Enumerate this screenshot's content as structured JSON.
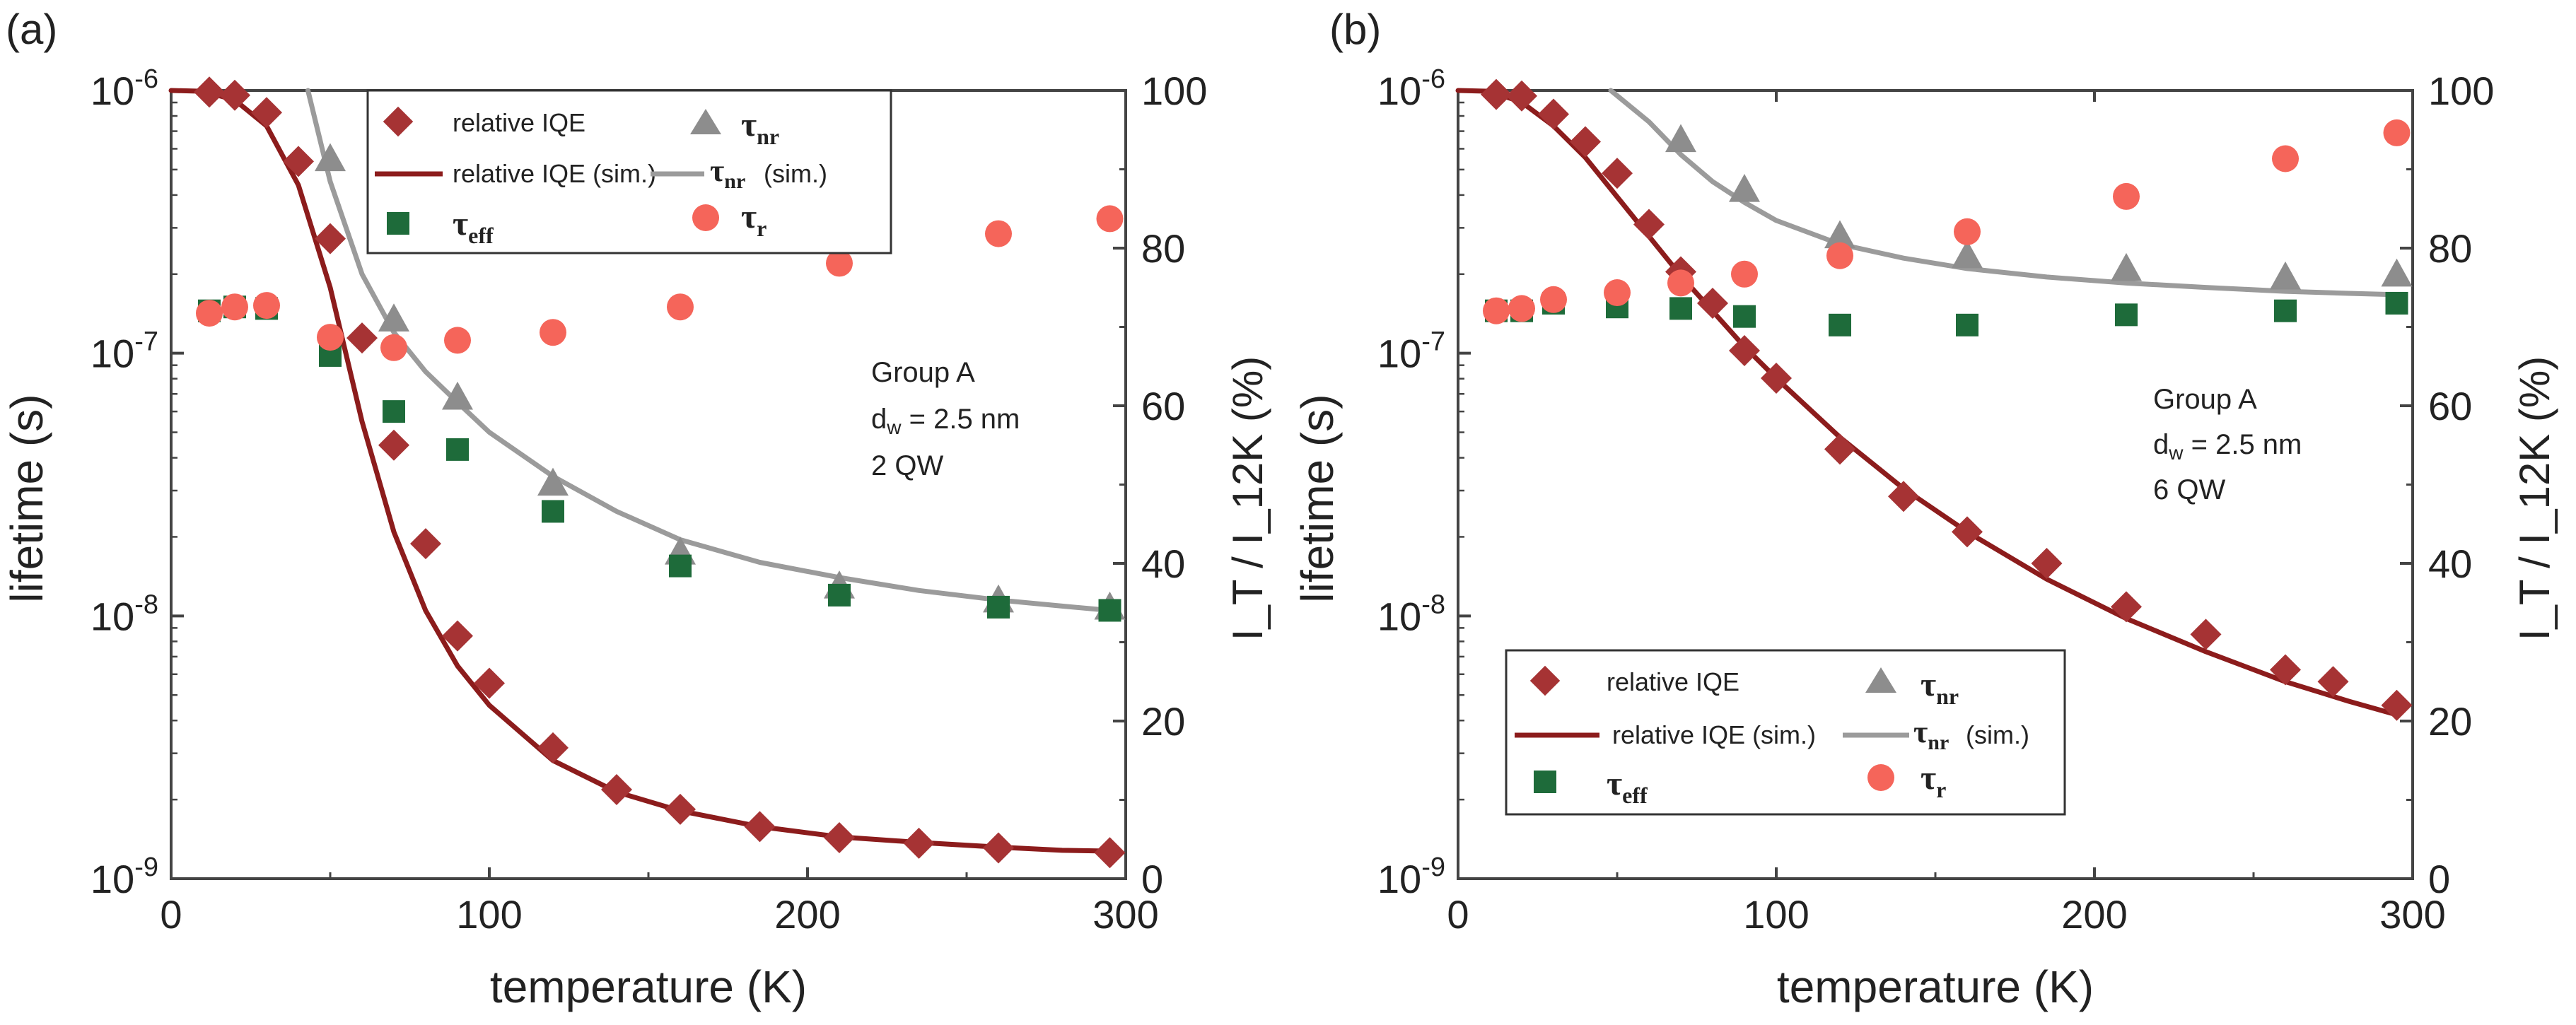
{
  "chart_data": [
    {
      "type": "scatter",
      "panel_label": "(a)",
      "xlabel": "temperature (K)",
      "ylabel_left": "lifetime (s)",
      "ylabel_right": "I_T / I_12K (%)",
      "xlim": [
        0,
        300
      ],
      "ylim_left_log10": [
        -9,
        -6
      ],
      "ylim_right": [
        0,
        100
      ],
      "x_ticks": [
        "0",
        "100",
        "200",
        "300"
      ],
      "y_left_ticks": [
        "-9",
        "-8",
        "-7",
        "-6"
      ],
      "y_right_ticks": [
        "0",
        "20",
        "40",
        "60",
        "80",
        "100"
      ],
      "annotation": {
        "group": "Group A",
        "dw_value": "= 2.5 nm",
        "qw": "2 QW"
      },
      "legend": {
        "placement": "top-center",
        "relative_iqe": "relative IQE",
        "relative_iqe_sim": "relative IQE (sim.)",
        "tau_nr": "nr",
        "tau_nr_sim": "(sim.)",
        "tau_eff": "eff",
        "tau_r": "r"
      },
      "series": [
        {
          "name": "relative IQE",
          "axis": "right",
          "marker": "diamond",
          "color": "#a63334",
          "x": [
            12,
            20,
            30,
            40,
            50,
            60,
            70,
            80,
            90,
            100,
            120,
            140,
            160,
            185,
            210,
            235,
            260,
            295
          ],
          "y": [
            99.8,
            99.4,
            97.2,
            91.0,
            81.2,
            68.6,
            55.0,
            42.5,
            30.8,
            24.8,
            16.6,
            11.3,
            8.8,
            6.6,
            5.2,
            4.5,
            3.9,
            3.3
          ]
        },
        {
          "name": "relative IQE (sim.)",
          "axis": "right",
          "line": true,
          "color": "#8c1c1c",
          "x": [
            0,
            10,
            20,
            30,
            40,
            50,
            60,
            70,
            80,
            90,
            100,
            120,
            140,
            160,
            185,
            210,
            235,
            260,
            280,
            295
          ],
          "y": [
            100,
            99.9,
            98.8,
            95.5,
            88.0,
            75.0,
            58.0,
            44.0,
            34.0,
            27.0,
            22.0,
            15.0,
            11.0,
            8.6,
            6.6,
            5.3,
            4.6,
            4.0,
            3.6,
            3.5
          ]
        },
        {
          "name": "tau_nr",
          "axis": "left",
          "marker": "triangle",
          "color": "#8d8d8d",
          "x": [
            50,
            70,
            90,
            120,
            160,
            210,
            260,
            295
          ],
          "y": [
            5.5e-07,
            1.35e-07,
            6.8e-08,
            3.2e-08,
            1.75e-08,
            1.3e-08,
            1.15e-08,
            1.08e-08
          ]
        },
        {
          "name": "tau_nr (sim.)",
          "axis": "left",
          "line": true,
          "color": "#9b9b9b",
          "x": [
            43,
            50,
            60,
            70,
            80,
            90,
            100,
            120,
            140,
            160,
            185,
            210,
            235,
            260,
            280,
            295
          ],
          "y": [
            1e-06,
            4.5e-07,
            2e-07,
            1.2e-07,
            8.5e-08,
            6.5e-08,
            5e-08,
            3.4e-08,
            2.5e-08,
            1.95e-08,
            1.6e-08,
            1.4e-08,
            1.25e-08,
            1.15e-08,
            1.09e-08,
            1.05e-08
          ]
        },
        {
          "name": "tau_eff",
          "axis": "left",
          "marker": "square",
          "color": "#1e6b3a",
          "x": [
            12,
            20,
            30,
            50,
            70,
            90,
            120,
            160,
            210,
            260,
            295
          ],
          "y": [
            1.45e-07,
            1.5e-07,
            1.48e-07,
            9.8e-08,
            6e-08,
            4.3e-08,
            2.5e-08,
            1.55e-08,
            1.2e-08,
            1.08e-08,
            1.05e-08
          ]
        },
        {
          "name": "tau_r",
          "axis": "left",
          "marker": "circle",
          "color": "#f5655a",
          "x": [
            12,
            20,
            30,
            50,
            70,
            90,
            120,
            160,
            210,
            260,
            295
          ],
          "y": [
            1.42e-07,
            1.5e-07,
            1.52e-07,
            1.15e-07,
            1.05e-07,
            1.12e-07,
            1.2e-07,
            1.5e-07,
            2.2e-07,
            2.85e-07,
            3.25e-07
          ]
        }
      ]
    },
    {
      "type": "scatter",
      "panel_label": "(b)",
      "xlabel": "temperature (K)",
      "ylabel_left": "lifetime (s)",
      "ylabel_right": "I_T / I_12K (%)",
      "xlim": [
        0,
        300
      ],
      "ylim_left_log10": [
        -9,
        -6
      ],
      "ylim_right": [
        0,
        100
      ],
      "x_ticks": [
        "0",
        "100",
        "200",
        "300"
      ],
      "y_left_ticks": [
        "-9",
        "-8",
        "-7",
        "-6"
      ],
      "y_right_ticks": [
        "0",
        "20",
        "40",
        "60",
        "80",
        "100"
      ],
      "annotation": {
        "group": "Group A",
        "dw_value": "= 2.5 nm",
        "qw": "6 QW"
      },
      "legend": {
        "placement": "bottom-center",
        "relative_iqe": "relative IQE",
        "relative_iqe_sim": "relative IQE (sim.)",
        "tau_nr": "nr",
        "tau_nr_sim": "(sim.)",
        "tau_eff": "eff",
        "tau_r": "r"
      },
      "series": [
        {
          "name": "relative IQE",
          "axis": "right",
          "marker": "diamond",
          "color": "#a63334",
          "x": [
            12,
            20,
            30,
            40,
            50,
            60,
            70,
            80,
            90,
            100,
            120,
            140,
            160,
            185,
            210,
            235,
            260,
            275,
            295
          ],
          "y": [
            99.5,
            99.3,
            97.0,
            93.5,
            89.5,
            83.0,
            77.0,
            73.0,
            67.0,
            63.5,
            54.5,
            48.5,
            44.0,
            40.0,
            34.5,
            31.0,
            26.5,
            25.0,
            22.0
          ]
        },
        {
          "name": "relative IQE (sim.)",
          "axis": "right",
          "line": true,
          "color": "#8c1c1c",
          "x": [
            0,
            10,
            20,
            30,
            40,
            50,
            60,
            70,
            80,
            90,
            100,
            120,
            140,
            160,
            185,
            210,
            235,
            260,
            280,
            295
          ],
          "y": [
            100,
            99.9,
            98.5,
            95.5,
            91.5,
            86.5,
            81.5,
            76.5,
            72.0,
            67.5,
            63.5,
            56.0,
            49.5,
            44.0,
            38.0,
            33.0,
            28.8,
            25.0,
            22.5,
            20.8
          ]
        },
        {
          "name": "tau_nr",
          "axis": "left",
          "marker": "triangle",
          "color": "#8d8d8d",
          "x": [
            70,
            90,
            120,
            160,
            210,
            260,
            295
          ],
          "y": [
            6.5e-07,
            4.2e-07,
            2.8e-07,
            2.35e-07,
            2.1e-07,
            1.95e-07,
            2e-07
          ]
        },
        {
          "name": "tau_nr (sim.)",
          "axis": "left",
          "line": true,
          "color": "#9b9b9b",
          "x": [
            48,
            60,
            70,
            80,
            90,
            100,
            120,
            140,
            160,
            185,
            210,
            235,
            260,
            280,
            295
          ],
          "y": [
            1e-06,
            7.6e-07,
            5.7e-07,
            4.5e-07,
            3.75e-07,
            3.2e-07,
            2.6e-07,
            2.3e-07,
            2.1e-07,
            1.95e-07,
            1.85e-07,
            1.78e-07,
            1.72e-07,
            1.69e-07,
            1.67e-07
          ]
        },
        {
          "name": "tau_eff",
          "axis": "left",
          "marker": "square",
          "color": "#1e6b3a",
          "x": [
            12,
            20,
            30,
            50,
            70,
            90,
            120,
            160,
            210,
            260,
            295
          ],
          "y": [
            1.45e-07,
            1.45e-07,
            1.55e-07,
            1.5e-07,
            1.48e-07,
            1.38e-07,
            1.28e-07,
            1.28e-07,
            1.4e-07,
            1.45e-07,
            1.55e-07
          ]
        },
        {
          "name": "tau_r",
          "axis": "left",
          "marker": "circle",
          "color": "#f5655a",
          "x": [
            12,
            20,
            30,
            50,
            70,
            90,
            120,
            160,
            210,
            260,
            295
          ],
          "y": [
            1.45e-07,
            1.48e-07,
            1.6e-07,
            1.7e-07,
            1.85e-07,
            2e-07,
            2.35e-07,
            2.9e-07,
            3.95e-07,
            5.5e-07,
            6.9e-07
          ]
        }
      ]
    }
  ]
}
